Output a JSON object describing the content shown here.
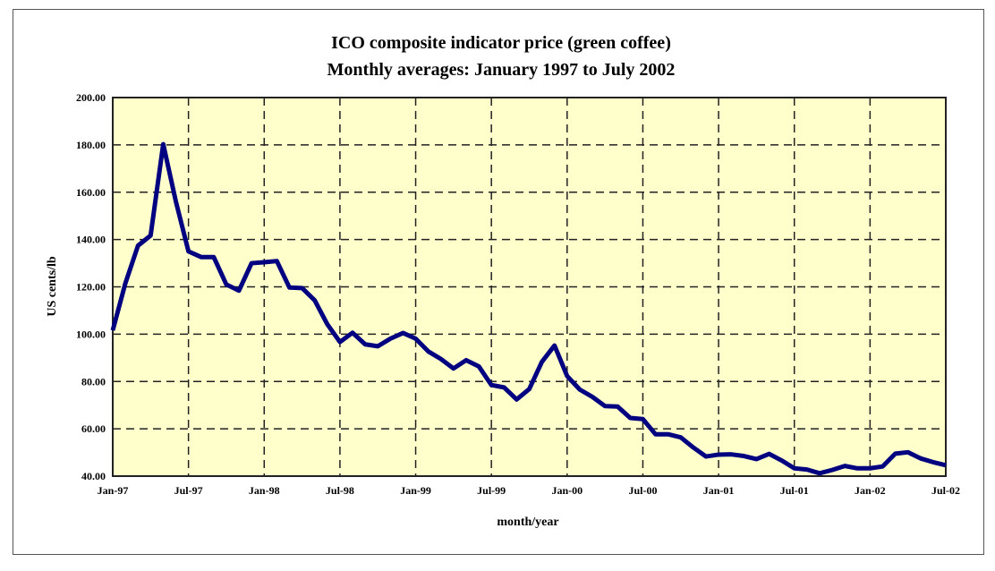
{
  "chart_data": {
    "type": "line",
    "title": "ICO composite indicator price (green coffee)",
    "subtitle": "Monthly averages: January 1997 to July 2002",
    "xlabel": "month/year",
    "ylabel": "US cents/lb",
    "ylim": [
      40,
      200
    ],
    "yticks": [
      "40.00",
      "60.00",
      "80.00",
      "100.00",
      "120.00",
      "140.00",
      "160.00",
      "180.00",
      "200.00"
    ],
    "xticks": [
      "Jan-97",
      "Jul-97",
      "Jan-98",
      "Jul-98",
      "Jan-99",
      "Jul-99",
      "Jan-00",
      "Jul-00",
      "Jan-01",
      "Jul-01",
      "Jan-02",
      "Jul-02"
    ],
    "grid": true,
    "background_color": "#FFFFCC",
    "line_color": "#000080",
    "series": [
      {
        "start": "Jan-97",
        "end": "Jul-02",
        "values": [
          101.6,
          121.5,
          137.4,
          141.7,
          180.3,
          156.1,
          135.0,
          132.6,
          132.6,
          121.0,
          118.4,
          130.0,
          130.4,
          130.9,
          119.7,
          119.5,
          114.3,
          104.2,
          96.7,
          100.6,
          95.7,
          94.9,
          98.1,
          100.5,
          98.1,
          92.7,
          89.5,
          85.5,
          89.0,
          86.4,
          78.5,
          77.5,
          72.4,
          76.8,
          88.3,
          95.2,
          82.3,
          76.6,
          73.5,
          69.6,
          69.4,
          64.6,
          64.1,
          57.7,
          57.7,
          56.4,
          52.1,
          48.3,
          49.1,
          49.2,
          48.5,
          47.2,
          49.4,
          46.6,
          43.3,
          42.8,
          41.2,
          42.6,
          44.3,
          43.3,
          43.3,
          44.1,
          49.5,
          50.1,
          47.5,
          45.9,
          44.6
        ]
      }
    ]
  }
}
